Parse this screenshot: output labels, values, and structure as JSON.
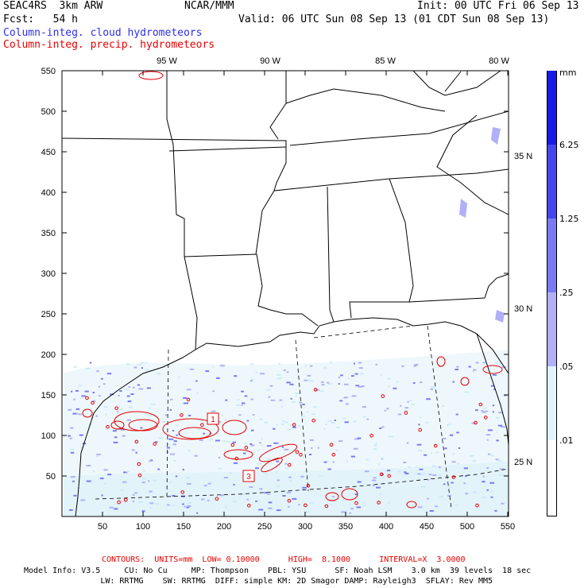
{
  "header": {
    "line1_left": "SEAC4RS  3km ARW",
    "line1_center": "NCAR/MMM",
    "line1_right": "Init: 00 UTC Fri 06 Sep 13",
    "line2_left": "Fcst:   54 h",
    "line2_right": "Valid: 06 UTC Sun 08 Sep 13 (01 CDT Sun 08 Sep 13)",
    "field1": "Column-integ. cloud hydrometeors",
    "field2": "Column-integ. precip. hydrometeors"
  },
  "map": {
    "lon_labels": [
      "95 W",
      "90 W",
      "85 W",
      "80 W"
    ],
    "lat_labels": [
      "35 N",
      "30 N",
      "25 N"
    ],
    "x_ticks": [
      "50",
      "100",
      "150",
      "200",
      "250",
      "300",
      "350",
      "400",
      "450",
      "500",
      "550"
    ],
    "y_ticks": [
      "550",
      "500",
      "450",
      "400",
      "350",
      "300",
      "250",
      "200",
      "150",
      "100",
      "50"
    ],
    "contour_labels": [
      "1",
      "3"
    ]
  },
  "colorbar": {
    "unit": "mm",
    "labels": [
      "6.25",
      "1.25",
      ".25",
      ".05",
      ".01"
    ],
    "colors": [
      "#1a1ae6",
      "#4646f0",
      "#7a7af2",
      "#b0b0f6",
      "#dff4fb",
      "#ffffff"
    ]
  },
  "footer": {
    "contours": "CONTOURS:  UNITS=mm  LOW= 0.10000      HIGH=  8.1000      INTERVAL=X  3.0000",
    "model1": "Model Info: V3.5     CU: No Cu     MP: Thompson    PBL: YSU      SF: Noah LSM    3.0 km  39 levels  18 sec",
    "model2": "                LW: RRTMG    SW: RRTMG  DIFF: simple KM: 2D Smagor DAMP: Rayleigh3  SFLAY: Rev MM5"
  }
}
